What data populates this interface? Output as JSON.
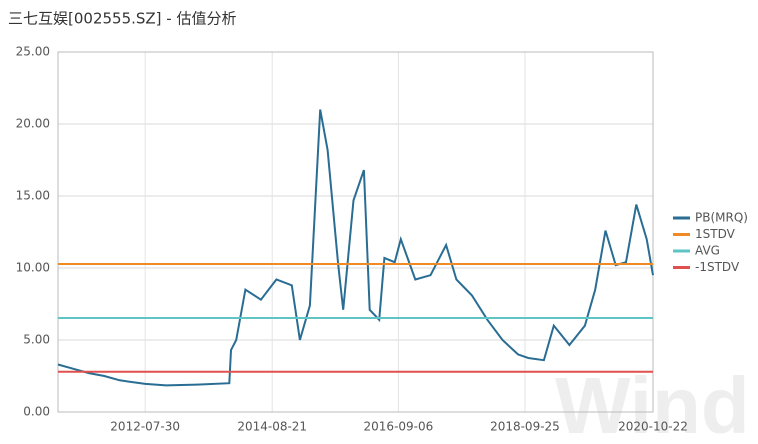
{
  "chart_data": {
    "type": "line",
    "title": "三七互娱[002555.SZ] - 估值分析",
    "watermark": "Wind",
    "xlim": [
      "2011-03-02",
      "2020-10-22"
    ],
    "xticks": [
      "2012-07-30",
      "2014-08-21",
      "2016-09-06",
      "2018-09-25",
      "2020-10-22"
    ],
    "ylim": [
      0,
      25
    ],
    "yticks": [
      {
        "value": 0,
        "label": "0.00"
      },
      {
        "value": 5,
        "label": "5.00"
      },
      {
        "value": 10,
        "label": "10.00"
      },
      {
        "value": 15,
        "label": "15.00"
      },
      {
        "value": 20,
        "label": "20.00"
      },
      {
        "value": 25,
        "label": "25.00"
      }
    ],
    "grid": true,
    "legend": "right",
    "series": [
      {
        "name": "PB(MRQ)",
        "color": "#2a6d93",
        "x": [
          "2011-03-02",
          "2011-06-01",
          "2011-09-01",
          "2011-12-01",
          "2012-03-01",
          "2012-07-30",
          "2012-12-01",
          "2013-06-01",
          "2013-12-10",
          "2013-12-20",
          "2014-01-20",
          "2014-03-15",
          "2014-06-15",
          "2014-09-15",
          "2014-12-15",
          "2015-02-01",
          "2015-04-01",
          "2015-06-01",
          "2015-07-15",
          "2015-09-15",
          "2015-10-15",
          "2015-12-15",
          "2016-02-15",
          "2016-03-20",
          "2016-05-15",
          "2016-06-15",
          "2016-08-15",
          "2016-09-20",
          "2016-12-15",
          "2017-03-15",
          "2017-06-15",
          "2017-08-15",
          "2017-11-15",
          "2018-02-15",
          "2018-05-15",
          "2018-08-15",
          "2018-10-15",
          "2019-01-15",
          "2019-03-15",
          "2019-06-15",
          "2019-09-15",
          "2019-11-15",
          "2020-01-15",
          "2020-03-15",
          "2020-05-15",
          "2020-07-15",
          "2020-09-15",
          "2020-10-22"
        ],
        "values": [
          3.3,
          3.0,
          2.7,
          2.5,
          2.2,
          1.95,
          1.85,
          1.9,
          2.0,
          4.3,
          5.0,
          8.5,
          7.8,
          9.2,
          8.8,
          5.0,
          7.4,
          21.0,
          18.2,
          10.3,
          7.1,
          14.7,
          16.8,
          7.1,
          6.4,
          10.7,
          10.4,
          12.0,
          9.2,
          9.5,
          11.6,
          9.2,
          8.1,
          6.4,
          5.0,
          4.0,
          3.75,
          3.6,
          6.0,
          4.65,
          6.0,
          8.5,
          12.6,
          10.2,
          10.4,
          14.4,
          12.0,
          9.5
        ]
      },
      {
        "name": "1STDV",
        "color": "#f08a24",
        "x": [
          "2011-03-02",
          "2020-10-22"
        ],
        "values": [
          10.28,
          10.28
        ]
      },
      {
        "name": "AVG",
        "color": "#5ec4c4",
        "x": [
          "2011-03-02",
          "2020-10-22"
        ],
        "values": [
          6.53,
          6.53
        ]
      },
      {
        "name": "-1STDV",
        "color": "#e0504f",
        "x": [
          "2011-03-02",
          "2020-10-22"
        ],
        "values": [
          2.8,
          2.8
        ]
      }
    ]
  }
}
